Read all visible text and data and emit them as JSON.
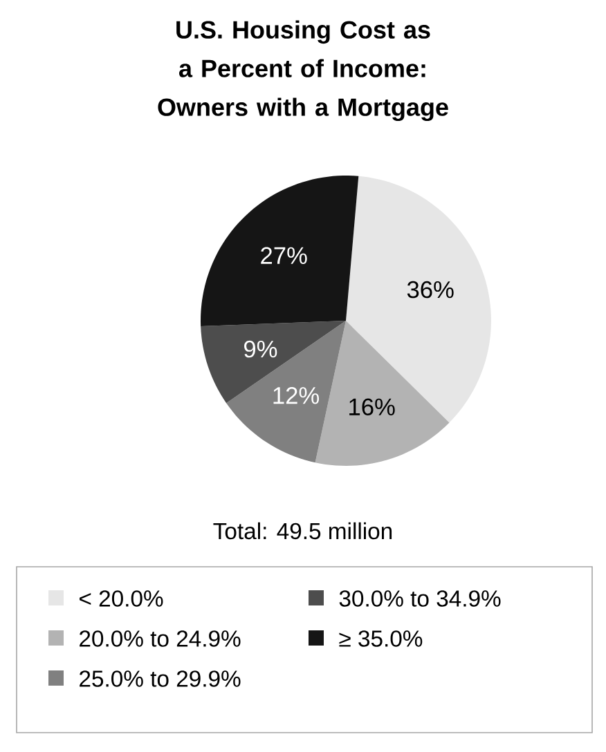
{
  "chart_data": {
    "type": "pie",
    "title": "U.S. Housing Cost as a Percent of Income: Owners with a Mortgage",
    "categories": [
      "< 20.0%",
      "20.0% to 24.9%",
      "25.0% to 29.9%",
      "30.0% to 34.9%",
      "≥ 35.0%"
    ],
    "values": [
      36,
      16,
      12,
      9,
      27
    ],
    "value_labels": [
      "36%",
      "16%",
      "12%",
      "9%",
      "27%"
    ],
    "colors": [
      "#e6e6e6",
      "#b3b3b3",
      "#808080",
      "#4d4d4d",
      "#151515"
    ],
    "annotations": [
      "Total: 49.5 million"
    ],
    "legend": "bottom"
  }
}
